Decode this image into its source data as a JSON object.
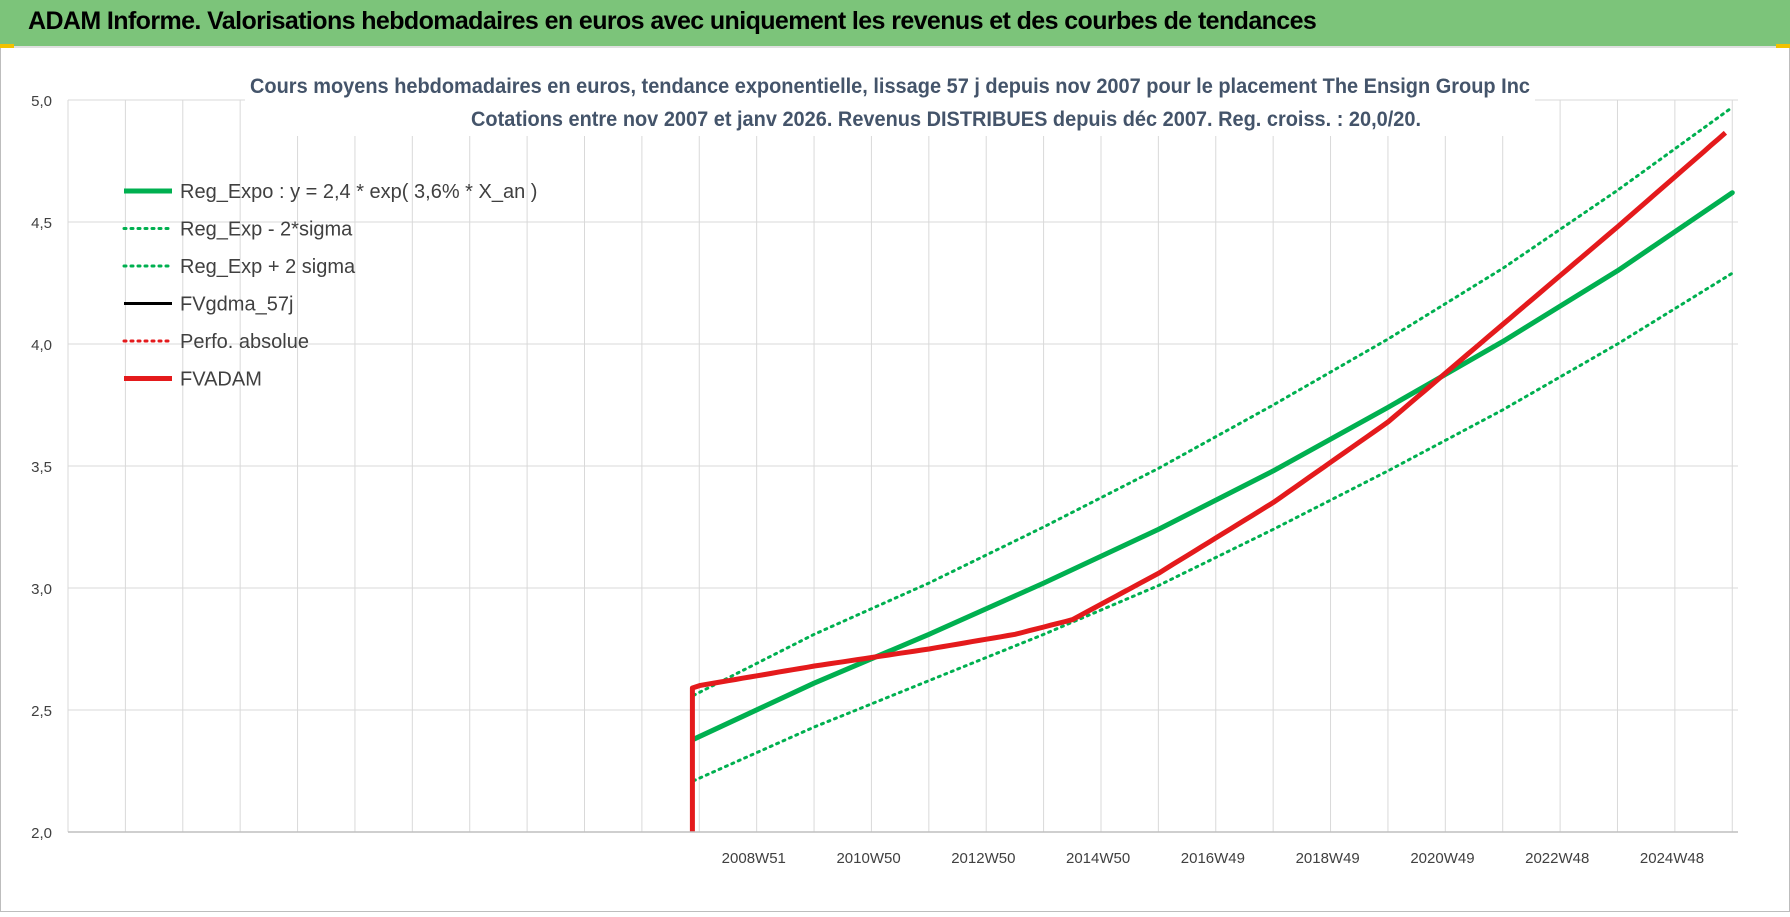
{
  "header": {
    "title": "ADAM Informe. Valorisations hebdomadaires en euros avec uniquement les revenus et des courbes de tendances"
  },
  "colors": {
    "header_bg": "#7cc47a",
    "reg_green": "#00b050",
    "fvadam_red": "#e41a1c",
    "grid": "#d9d9d9"
  },
  "chart_data": {
    "type": "line",
    "title_line1": "Cours moyens hebdomadaires en euros, tendance exponentielle, lissage 57 j depuis nov 2007 pour le placement The Ensign Group Inc",
    "title_line2": "Cotations entre nov 2007 et janv 2026. Revenus DISTRIBUES depuis déc 2007. Reg. croiss. : 20,0/20.",
    "xlabel": "",
    "ylabel": "",
    "ylim": [
      2.0,
      5.0
    ],
    "yticks": [
      "2,0",
      "2,5",
      "3,0",
      "3,5",
      "4,0",
      "4,5",
      "5,0"
    ],
    "ytick_values": [
      2.0,
      2.5,
      3.0,
      3.5,
      4.0,
      4.5,
      5.0
    ],
    "x_unit": "year",
    "xlim": [
      1997.0,
      2026.1
    ],
    "xtick_labels": [
      "2008W51",
      "2010W50",
      "2012W50",
      "2014W50",
      "2016W49",
      "2018W49",
      "2020W49",
      "2022W48",
      "2024W48"
    ],
    "xtick_values": [
      2008.95,
      2010.95,
      2012.95,
      2014.95,
      2016.95,
      2018.95,
      2020.95,
      2022.95,
      2024.95
    ],
    "grid": true,
    "legend_position": "top-left",
    "legend": [
      {
        "label": "Reg_Expo : y = 2,4 * exp( 3,6% *  X_an )",
        "color": "#00b050",
        "style": "solid-thick"
      },
      {
        "label": "Reg_Exp - 2*sigma",
        "color": "#00b050",
        "style": "dotted"
      },
      {
        "label": "Reg_Exp + 2 sigma",
        "color": "#00b050",
        "style": "dotted"
      },
      {
        "label": "FVgdma_57j",
        "color": "#000000",
        "style": "solid"
      },
      {
        "label": "Perfo. absolue",
        "color": "#e41a1c",
        "style": "dotted"
      },
      {
        "label": "FVADAM",
        "color": "#e41a1c",
        "style": "solid-thick"
      }
    ],
    "series": [
      {
        "name": "Reg_Expo : y = 2,4 * exp( 3,6% *  X_an )",
        "x": [
          2007.9,
          2010,
          2012,
          2014,
          2016,
          2018,
          2020,
          2022,
          2024,
          2026.0
        ],
        "y": [
          2.38,
          2.61,
          2.81,
          3.02,
          3.24,
          3.48,
          3.74,
          4.01,
          4.3,
          4.62
        ]
      },
      {
        "name": "Reg_Exp - 2*sigma",
        "x": [
          2007.9,
          2010,
          2012,
          2014,
          2016,
          2018,
          2020,
          2022,
          2024,
          2026.0
        ],
        "y": [
          2.21,
          2.43,
          2.62,
          2.81,
          3.01,
          3.24,
          3.48,
          3.73,
          4.0,
          4.29
        ]
      },
      {
        "name": "Reg_Exp + 2 sigma",
        "x": [
          2007.9,
          2010,
          2012,
          2014,
          2016,
          2018,
          2020,
          2022,
          2024,
          2026.0
        ],
        "y": [
          2.56,
          2.81,
          3.02,
          3.25,
          3.49,
          3.75,
          4.02,
          4.31,
          4.63,
          4.97
        ]
      },
      {
        "name": "FVADAM",
        "x": [
          2007.88,
          2007.88,
          2008.0,
          2010.0,
          2012.0,
          2013.5,
          2014.5,
          2016.0,
          2018.0,
          2020.0,
          2022.0,
          2024.0,
          2026.0
        ],
        "y": [
          2.0,
          2.59,
          2.6,
          2.68,
          2.75,
          2.81,
          2.87,
          3.06,
          3.35,
          3.68,
          4.08,
          4.48,
          4.89
        ]
      }
    ]
  }
}
